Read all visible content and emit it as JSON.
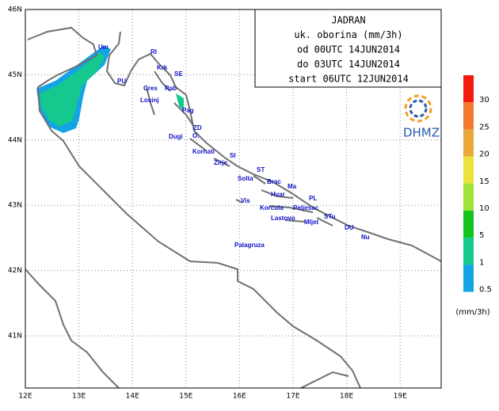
{
  "title_box": {
    "lines": [
      "JADRAN",
      "uk. oborina (mm/3h)",
      "od 00UTC 14JUN2014",
      "do 03UTC 14JUN2014",
      "start 06UTC 12JUN2014"
    ]
  },
  "logo": "DHMZ",
  "lon_labels": [
    "12E",
    "13E",
    "14E",
    "15E",
    "16E",
    "17E",
    "18E",
    "19E"
  ],
  "lat_labels": [
    "46N",
    "45N",
    "44N",
    "43N",
    "42N",
    "41N"
  ],
  "places": [
    "Um",
    "PU",
    "RI",
    "Krk",
    "SE",
    "Cres",
    "Rab",
    "Losinj",
    "Pag",
    "ZD",
    "Dugi",
    "O.",
    "Kornati",
    "SI",
    "Zirje",
    "ST",
    "Solta",
    "Brac",
    "Ma",
    "Hvar",
    "PL",
    "Vis",
    "Korcula",
    "Peljesac",
    "Lastovo",
    "STu",
    "Mljet",
    "DU",
    "Nu",
    "Palagruza"
  ],
  "legend": {
    "levels": [
      {
        "value": 30,
        "color": "#f21a0e"
      },
      {
        "value": 25,
        "color": "#f47a30"
      },
      {
        "value": 20,
        "color": "#eaa83a"
      },
      {
        "value": 15,
        "color": "#ece23a"
      },
      {
        "value": 10,
        "color": "#9ee23a"
      },
      {
        "value": 5,
        "color": "#14c41e"
      },
      {
        "value": 1,
        "color": "#14c88e"
      },
      {
        "value": 0.5,
        "color": "#14a4e6"
      }
    ],
    "unit": "(mm/3h)"
  }
}
